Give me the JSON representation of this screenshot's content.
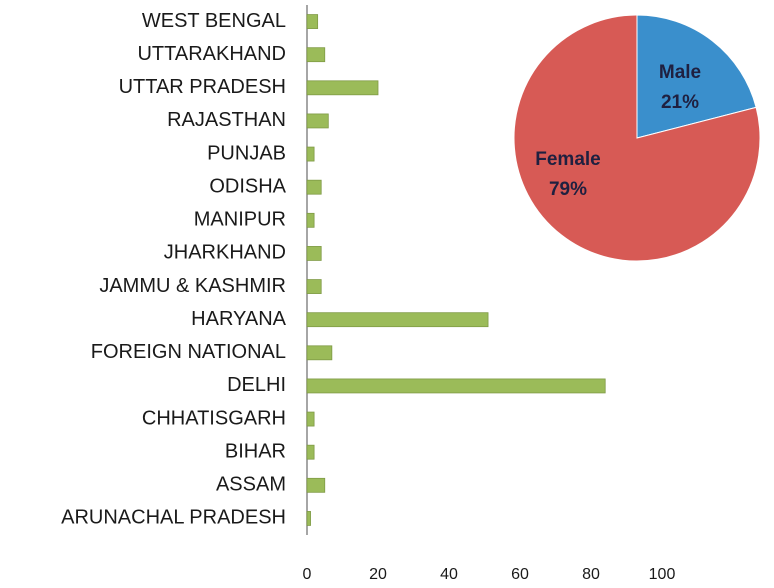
{
  "chart_data": [
    {
      "type": "bar",
      "orientation": "horizontal",
      "categories": [
        "WEST BENGAL",
        "UTTARAKHAND",
        "UTTAR PRADESH",
        "RAJASTHAN",
        "PUNJAB",
        "ODISHA",
        "MANIPUR",
        "JHARKHAND",
        "JAMMU & KASHMIR",
        "HARYANA",
        "FOREIGN NATIONAL",
        "DELHI",
        "CHHATISGARH",
        "BIHAR",
        "ASSAM",
        "ARUNACHAL PRADESH"
      ],
      "values": [
        3,
        5,
        20,
        6,
        2,
        4,
        2,
        4,
        4,
        51,
        7,
        84,
        2,
        2,
        5,
        1
      ],
      "color": "#9bbb59",
      "xlim": [
        0,
        100
      ],
      "xticks": [
        0,
        20,
        40,
        60,
        80,
        100
      ]
    },
    {
      "type": "pie",
      "categories": [
        "Male",
        "Female"
      ],
      "values": [
        21,
        79
      ],
      "value_labels": [
        "21%",
        "79%"
      ],
      "colors": [
        "#3a8fcc",
        "#d75a55"
      ]
    }
  ]
}
